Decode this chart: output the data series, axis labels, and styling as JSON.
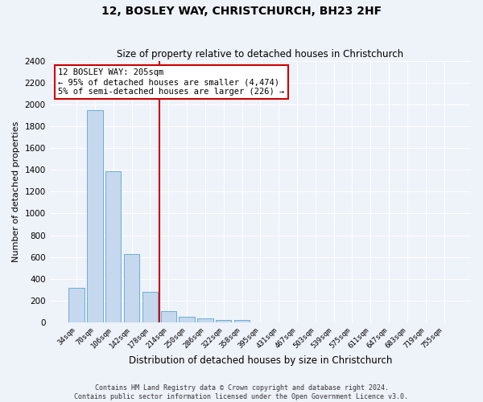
{
  "title": "12, BOSLEY WAY, CHRISTCHURCH, BH23 2HF",
  "subtitle": "Size of property relative to detached houses in Christchurch",
  "xlabel": "Distribution of detached houses by size in Christchurch",
  "ylabel": "Number of detached properties",
  "bar_labels": [
    "34sqm",
    "70sqm",
    "106sqm",
    "142sqm",
    "178sqm",
    "214sqm",
    "250sqm",
    "286sqm",
    "322sqm",
    "358sqm",
    "395sqm",
    "431sqm",
    "467sqm",
    "503sqm",
    "539sqm",
    "575sqm",
    "611sqm",
    "647sqm",
    "683sqm",
    "719sqm",
    "755sqm"
  ],
  "bar_values": [
    315,
    1950,
    1385,
    625,
    280,
    100,
    50,
    35,
    25,
    20,
    0,
    0,
    0,
    0,
    0,
    0,
    0,
    0,
    0,
    0,
    0
  ],
  "bar_color": "#c5d8ee",
  "bar_edge_color": "#6baed6",
  "vline_color": "#cc0000",
  "ylim": [
    0,
    2400
  ],
  "yticks": [
    0,
    200,
    400,
    600,
    800,
    1000,
    1200,
    1400,
    1600,
    1800,
    2000,
    2200,
    2400
  ],
  "annotation_text": "12 BOSLEY WAY: 205sqm\n← 95% of detached houses are smaller (4,474)\n5% of semi-detached houses are larger (226) →",
  "annotation_box_color": "#ffffff",
  "annotation_box_edge_color": "#cc0000",
  "footer_line1": "Contains HM Land Registry data © Crown copyright and database right 2024.",
  "footer_line2": "Contains public sector information licensed under the Open Government Licence v3.0.",
  "background_color": "#eef2f9",
  "grid_color": "#ffffff",
  "title_fontsize": 10,
  "subtitle_fontsize": 8.5,
  "ylabel_fontsize": 8,
  "xlabel_fontsize": 8.5
}
